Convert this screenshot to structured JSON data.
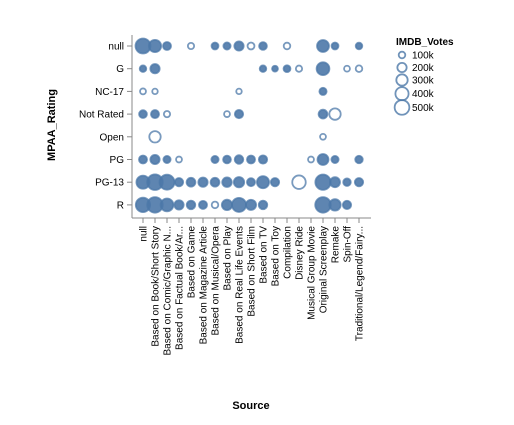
{
  "chart_data": {
    "type": "scatter",
    "mark": "circle",
    "xlabel": "Source",
    "ylabel": "MPAA_Rating",
    "x_categories": [
      "null",
      "Based on Book/Short Story",
      "Based on Comic/Graphic N...",
      "Based on Factual Book/Ar...",
      "Based on Game",
      "Based on Magazine Article",
      "Based on Musical/Opera",
      "Based on Play",
      "Based on Real Life Events",
      "Based on Short Film",
      "Based on TV",
      "Based on Toy",
      "Compilation",
      "Disney Ride",
      "Musical Group Movie",
      "Original Screenplay",
      "Remake",
      "Spin-Off",
      "Traditional/Legend/Fairy..."
    ],
    "y_categories": [
      "null",
      "G",
      "NC-17",
      "Not Rated",
      "Open",
      "PG",
      "PG-13",
      "R"
    ],
    "size_field": "IMDB_Votes",
    "legend": {
      "title": "IMDB_Votes",
      "position": "top-right",
      "entries": [
        {
          "label": "100k",
          "value": 100000
        },
        {
          "label": "200k",
          "value": 200000
        },
        {
          "label": "300k",
          "value": 300000
        },
        {
          "label": "400k",
          "value": 400000
        },
        {
          "label": "500k",
          "value": 500000
        }
      ]
    },
    "color": "#4c78a8",
    "points": [
      {
        "x": "null",
        "y": "null",
        "votes": 520000,
        "filled": true
      },
      {
        "x": "Based on Book/Short Story",
        "y": "null",
        "votes": 350000,
        "filled": true
      },
      {
        "x": "Based on Comic/Graphic N...",
        "y": "null",
        "votes": 150000,
        "filled": true
      },
      {
        "x": "Based on Game",
        "y": "null",
        "votes": 90000,
        "filled": false
      },
      {
        "x": "Based on Musical/Opera",
        "y": "null",
        "votes": 110000,
        "filled": true
      },
      {
        "x": "Based on Play",
        "y": "null",
        "votes": 120000,
        "filled": true
      },
      {
        "x": "Based on Real Life Events",
        "y": "null",
        "votes": 200000,
        "filled": true
      },
      {
        "x": "Based on Short Film",
        "y": "null",
        "votes": 110000,
        "filled": false
      },
      {
        "x": "Based on TV",
        "y": "null",
        "votes": 140000,
        "filled": true
      },
      {
        "x": "Compilation",
        "y": "null",
        "votes": 100000,
        "filled": false
      },
      {
        "x": "Original Screenplay",
        "y": "null",
        "votes": 330000,
        "filled": true
      },
      {
        "x": "Remake",
        "y": "null",
        "votes": 110000,
        "filled": true
      },
      {
        "x": "Traditional/Legend/Fairy...",
        "y": "null",
        "votes": 100000,
        "filled": true
      },
      {
        "x": "null",
        "y": "G",
        "votes": 100000,
        "filled": true
      },
      {
        "x": "Based on Book/Short Story",
        "y": "G",
        "votes": 200000,
        "filled": true
      },
      {
        "x": "Based on TV",
        "y": "G",
        "votes": 100000,
        "filled": true
      },
      {
        "x": "Based on Toy",
        "y": "G",
        "votes": 80000,
        "filled": true
      },
      {
        "x": "Compilation",
        "y": "G",
        "votes": 110000,
        "filled": true
      },
      {
        "x": "Disney Ride",
        "y": "G",
        "votes": 90000,
        "filled": false
      },
      {
        "x": "Original Screenplay",
        "y": "G",
        "votes": 380000,
        "filled": true
      },
      {
        "x": "Spin-Off",
        "y": "G",
        "votes": 80000,
        "filled": false
      },
      {
        "x": "Traditional/Legend/Fairy...",
        "y": "G",
        "votes": 100000,
        "filled": false
      },
      {
        "x": "null",
        "y": "NC-17",
        "votes": 80000,
        "filled": false
      },
      {
        "x": "Based on Book/Short Story",
        "y": "NC-17",
        "votes": 70000,
        "filled": false
      },
      {
        "x": "Based on Real Life Events",
        "y": "NC-17",
        "votes": 70000,
        "filled": false
      },
      {
        "x": "Original Screenplay",
        "y": "NC-17",
        "votes": 120000,
        "filled": true
      },
      {
        "x": "null",
        "y": "Not Rated",
        "votes": 140000,
        "filled": true
      },
      {
        "x": "Based on Book/Short Story",
        "y": "Not Rated",
        "votes": 150000,
        "filled": true
      },
      {
        "x": "Based on Comic/Graphic N...",
        "y": "Not Rated",
        "votes": 90000,
        "filled": false
      },
      {
        "x": "Based on Play",
        "y": "Not Rated",
        "votes": 80000,
        "filled": false
      },
      {
        "x": "Based on Real Life Events",
        "y": "Not Rated",
        "votes": 160000,
        "filled": true
      },
      {
        "x": "Original Screenplay",
        "y": "Not Rated",
        "votes": 180000,
        "filled": true
      },
      {
        "x": "Remake",
        "y": "Not Rated",
        "votes": 300000,
        "filled": false
      },
      {
        "x": "Based on Book/Short Story",
        "y": "Open",
        "votes": 300000,
        "filled": false
      },
      {
        "x": "Original Screenplay",
        "y": "Open",
        "votes": 80000,
        "filled": false
      },
      {
        "x": "null",
        "y": "PG",
        "votes": 150000,
        "filled": true
      },
      {
        "x": "Based on Book/Short Story",
        "y": "PG",
        "votes": 200000,
        "filled": true
      },
      {
        "x": "Based on Comic/Graphic N...",
        "y": "PG",
        "votes": 120000,
        "filled": true
      },
      {
        "x": "Based on Factual Book/Ar...",
        "y": "PG",
        "votes": 80000,
        "filled": false
      },
      {
        "x": "Based on Musical/Opera",
        "y": "PG",
        "votes": 120000,
        "filled": true
      },
      {
        "x": "Based on Play",
        "y": "PG",
        "votes": 140000,
        "filled": true
      },
      {
        "x": "Based on Real Life Events",
        "y": "PG",
        "votes": 170000,
        "filled": true
      },
      {
        "x": "Based on Short Film",
        "y": "PG",
        "votes": 150000,
        "filled": true
      },
      {
        "x": "Based on TV",
        "y": "PG",
        "votes": 160000,
        "filled": true
      },
      {
        "x": "Musical Group Movie",
        "y": "PG",
        "votes": 80000,
        "filled": false
      },
      {
        "x": "Original Screenplay",
        "y": "PG",
        "votes": 280000,
        "filled": true
      },
      {
        "x": "Remake",
        "y": "PG",
        "votes": 120000,
        "filled": true
      },
      {
        "x": "Traditional/Legend/Fairy...",
        "y": "PG",
        "votes": 130000,
        "filled": true
      },
      {
        "x": "null",
        "y": "PG-13",
        "votes": 400000,
        "filled": true
      },
      {
        "x": "Based on Book/Short Story",
        "y": "PG-13",
        "votes": 560000,
        "filled": true
      },
      {
        "x": "Based on Comic/Graphic N...",
        "y": "PG-13",
        "votes": 520000,
        "filled": true
      },
      {
        "x": "Based on Factual Book/Ar...",
        "y": "PG-13",
        "votes": 160000,
        "filled": true
      },
      {
        "x": "Based on Game",
        "y": "PG-13",
        "votes": 180000,
        "filled": true
      },
      {
        "x": "Based on Magazine Article",
        "y": "PG-13",
        "votes": 200000,
        "filled": true
      },
      {
        "x": "Based on Musical/Opera",
        "y": "PG-13",
        "votes": 180000,
        "filled": true
      },
      {
        "x": "Based on Play",
        "y": "PG-13",
        "votes": 210000,
        "filled": true
      },
      {
        "x": "Based on Real Life Events",
        "y": "PG-13",
        "votes": 250000,
        "filled": true
      },
      {
        "x": "Based on Short Film",
        "y": "PG-13",
        "votes": 150000,
        "filled": true
      },
      {
        "x": "Based on TV",
        "y": "PG-13",
        "votes": 340000,
        "filled": true
      },
      {
        "x": "Based on Toy",
        "y": "PG-13",
        "votes": 160000,
        "filled": true
      },
      {
        "x": "Disney Ride",
        "y": "PG-13",
        "votes": 420000,
        "filled": false
      },
      {
        "x": "Original Screenplay",
        "y": "PG-13",
        "votes": 540000,
        "filled": true
      },
      {
        "x": "Remake",
        "y": "PG-13",
        "votes": 230000,
        "filled": true
      },
      {
        "x": "Spin-Off",
        "y": "PG-13",
        "votes": 130000,
        "filled": true
      },
      {
        "x": "Traditional/Legend/Fairy...",
        "y": "PG-13",
        "votes": 160000,
        "filled": true
      },
      {
        "x": "null",
        "y": "R",
        "votes": 480000,
        "filled": true
      },
      {
        "x": "Based on Book/Short Story",
        "y": "R",
        "votes": 560000,
        "filled": true
      },
      {
        "x": "Based on Comic/Graphic N...",
        "y": "R",
        "votes": 380000,
        "filled": true
      },
      {
        "x": "Based on Factual Book/Ar...",
        "y": "R",
        "votes": 200000,
        "filled": true
      },
      {
        "x": "Based on Game",
        "y": "R",
        "votes": 170000,
        "filled": true
      },
      {
        "x": "Based on Magazine Article",
        "y": "R",
        "votes": 150000,
        "filled": true
      },
      {
        "x": "Based on Musical/Opera",
        "y": "R",
        "votes": 100000,
        "filled": false
      },
      {
        "x": "Based on Play",
        "y": "R",
        "votes": 250000,
        "filled": true
      },
      {
        "x": "Based on Real Life Events",
        "y": "R",
        "votes": 460000,
        "filled": true
      },
      {
        "x": "Based on Short Film",
        "y": "R",
        "votes": 240000,
        "filled": true
      },
      {
        "x": "Based on TV",
        "y": "R",
        "votes": 170000,
        "filled": true
      },
      {
        "x": "Original Screenplay",
        "y": "R",
        "votes": 560000,
        "filled": true
      },
      {
        "x": "Remake",
        "y": "R",
        "votes": 300000,
        "filled": true
      },
      {
        "x": "Spin-Off",
        "y": "R",
        "votes": 160000,
        "filled": true
      }
    ]
  }
}
